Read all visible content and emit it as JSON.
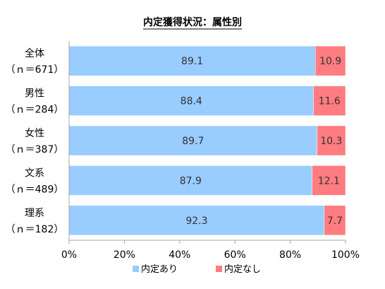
{
  "chart_data": {
    "type": "bar",
    "orientation": "horizontal",
    "stacked": true,
    "title": "内定獲得状況：属性別",
    "categories": [
      {
        "name": "全体",
        "n": "（ｎ＝671）"
      },
      {
        "name": "男性",
        "n": "（ｎ＝284）"
      },
      {
        "name": "女性",
        "n": "（ｎ＝387）"
      },
      {
        "name": "文系",
        "n": "（ｎ＝489）"
      },
      {
        "name": "理系",
        "n": "（ｎ＝182）"
      }
    ],
    "series": [
      {
        "name": "内定あり",
        "color": "#99CCFF",
        "values": [
          89.1,
          88.4,
          89.7,
          87.9,
          92.3
        ]
      },
      {
        "name": "内定なし",
        "color": "#FF7C80",
        "values": [
          10.9,
          11.6,
          10.3,
          12.1,
          7.7
        ]
      }
    ],
    "value_labels": [
      [
        "89.1",
        "88.4",
        "89.7",
        "87.9",
        "92.3"
      ],
      [
        "10.9",
        "11.6",
        "10.3",
        "12.1",
        "7.7"
      ]
    ],
    "xlim": [
      0,
      100
    ],
    "x_ticks": [
      "0%",
      "20%",
      "40%",
      "60%",
      "80%",
      "100%"
    ],
    "legend_position": "bottom",
    "grid": false
  }
}
